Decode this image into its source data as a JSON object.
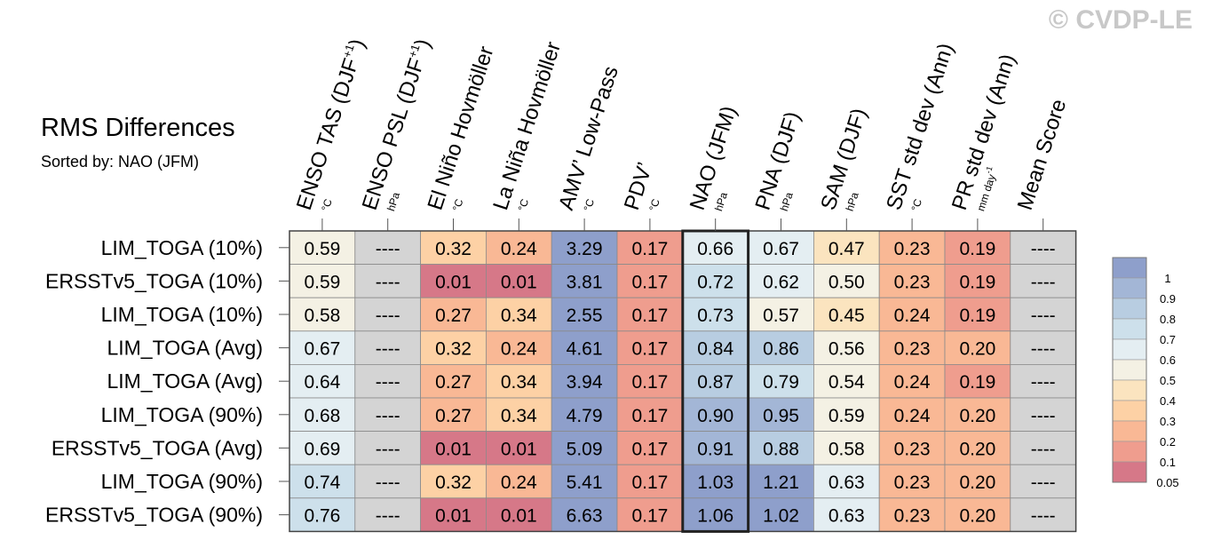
{
  "watermark": "© CVDP-LE",
  "title": "RMS Differences",
  "subtitle": "Sorted by: NAO (JFM)",
  "chart_data": {
    "type": "table",
    "highlighted_column": "NAO (JFM)",
    "columns": [
      {
        "name": "ENSO TAS (DJF+1)",
        "label": "ENSO TAS (DJF",
        "sup": "+1",
        "close": ")",
        "unit": "°C"
      },
      {
        "name": "ENSO PSL (DJF+1)",
        "label": "ENSO PSL (DJF",
        "sup": "+1",
        "close": ")",
        "unit": "hPa"
      },
      {
        "name": "El Niño Hovmöller",
        "label": "El Niño Hovmöller",
        "sup": "",
        "close": "",
        "unit": "°C"
      },
      {
        "name": "La Niña Hovmöller",
        "label": "La Niña Hovmöller",
        "sup": "",
        "close": "",
        "unit": "°C"
      },
      {
        "name": "AMV' Low-Pass",
        "label": "AMV’ Low-Pass",
        "sup": "",
        "close": "",
        "unit": "°C"
      },
      {
        "name": "PDV'",
        "label": "PDV’",
        "sup": "",
        "close": "",
        "unit": "°C"
      },
      {
        "name": "NAO (JFM)",
        "label": "NAO (JFM)",
        "sup": "",
        "close": "",
        "unit": "hPa"
      },
      {
        "name": "PNA (DJF)",
        "label": "PNA (DJF)",
        "sup": "",
        "close": "",
        "unit": "hPa"
      },
      {
        "name": "SAM (DJF)",
        "label": "SAM (DJF)",
        "sup": "",
        "close": "",
        "unit": "hPa"
      },
      {
        "name": "SST std dev (Ann)",
        "label": "SST std dev (Ann)",
        "sup": "",
        "close": "",
        "unit": "°C"
      },
      {
        "name": "PR std dev (Ann)",
        "label": "PR std dev (Ann)",
        "sup": "",
        "close": "",
        "unit": "mm day-1"
      },
      {
        "name": "Mean Score",
        "label": "Mean Score",
        "sup": "",
        "close": "",
        "unit": ""
      }
    ],
    "rows": [
      {
        "label": "LIM_TOGA (10%)",
        "values": [
          "0.59",
          "----",
          "0.32",
          "0.24",
          "3.29",
          "0.17",
          "0.66",
          "0.67",
          "0.47",
          "0.23",
          "0.19",
          "----"
        ]
      },
      {
        "label": "ERSSTv5_TOGA (10%)",
        "values": [
          "0.59",
          "----",
          "0.01",
          "0.01",
          "3.81",
          "0.17",
          "0.72",
          "0.62",
          "0.50",
          "0.23",
          "0.19",
          "----"
        ]
      },
      {
        "label": "LIM_TOGA (10%)",
        "values": [
          "0.58",
          "----",
          "0.27",
          "0.34",
          "2.55",
          "0.17",
          "0.73",
          "0.57",
          "0.45",
          "0.24",
          "0.19",
          "----"
        ]
      },
      {
        "label": "LIM_TOGA (Avg)",
        "values": [
          "0.67",
          "----",
          "0.32",
          "0.24",
          "4.61",
          "0.17",
          "0.84",
          "0.86",
          "0.56",
          "0.23",
          "0.20",
          "----"
        ]
      },
      {
        "label": "LIM_TOGA (Avg)",
        "values": [
          "0.64",
          "----",
          "0.27",
          "0.34",
          "3.94",
          "0.17",
          "0.87",
          "0.79",
          "0.54",
          "0.24",
          "0.19",
          "----"
        ]
      },
      {
        "label": "LIM_TOGA (90%)",
        "values": [
          "0.68",
          "----",
          "0.27",
          "0.34",
          "4.79",
          "0.17",
          "0.90",
          "0.95",
          "0.59",
          "0.24",
          "0.20",
          "----"
        ]
      },
      {
        "label": "ERSSTv5_TOGA (Avg)",
        "values": [
          "0.69",
          "----",
          "0.01",
          "0.01",
          "5.09",
          "0.17",
          "0.91",
          "0.88",
          "0.58",
          "0.23",
          "0.20",
          "----"
        ]
      },
      {
        "label": "LIM_TOGA (90%)",
        "values": [
          "0.74",
          "----",
          "0.32",
          "0.24",
          "5.41",
          "0.17",
          "1.03",
          "1.21",
          "0.63",
          "0.23",
          "0.20",
          "----"
        ]
      },
      {
        "label": "ERSSTv5_TOGA (90%)",
        "values": [
          "0.76",
          "----",
          "0.01",
          "0.01",
          "6.63",
          "0.17",
          "1.06",
          "1.02",
          "0.63",
          "0.23",
          "0.20",
          "----"
        ]
      }
    ],
    "missing_color": "#d4d4d4",
    "colorbar": {
      "labels": [
        "1",
        "0.9",
        "0.8",
        "0.7",
        "0.6",
        "0.5",
        "0.4",
        "0.3",
        "0.2",
        "0.1",
        "0.05"
      ],
      "colors": [
        "#8e9fcb",
        "#a3b6d6",
        "#b8cde1",
        "#cde0eb",
        "#e4eef2",
        "#f4f1e4",
        "#fbe4bf",
        "#fdd1a5",
        "#f9b895",
        "#ef9d8e",
        "#d67888"
      ]
    }
  }
}
